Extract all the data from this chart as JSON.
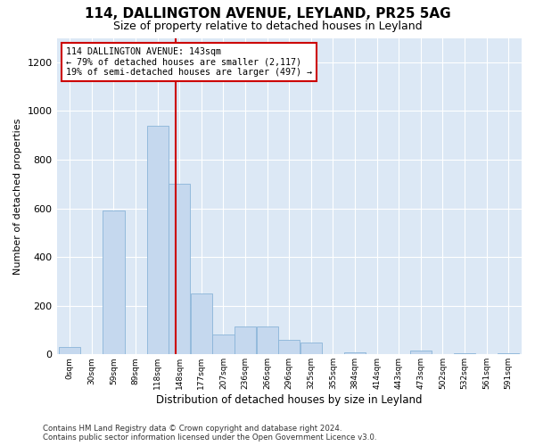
{
  "title": "114, DALLINGTON AVENUE, LEYLAND, PR25 5AG",
  "subtitle": "Size of property relative to detached houses in Leyland",
  "xlabel": "Distribution of detached houses by size in Leyland",
  "ylabel": "Number of detached properties",
  "bar_color": "#c5d8ee",
  "bar_edge_color": "#8ab4d8",
  "vline_color": "#cc0000",
  "vline_bin": 4,
  "annotation_text": "114 DALLINGTON AVENUE: 143sqm\n← 79% of detached houses are smaller (2,117)\n19% of semi-detached houses are larger (497) →",
  "annotation_box_color": "#ffffff",
  "annotation_box_edge": "#cc0000",
  "bin_labels": [
    "0sqm",
    "30sqm",
    "59sqm",
    "89sqm",
    "118sqm",
    "148sqm",
    "177sqm",
    "207sqm",
    "236sqm",
    "266sqm",
    "296sqm",
    "325sqm",
    "355sqm",
    "384sqm",
    "414sqm",
    "443sqm",
    "473sqm",
    "502sqm",
    "532sqm",
    "561sqm",
    "591sqm"
  ],
  "bar_heights": [
    30,
    0,
    590,
    0,
    940,
    700,
    250,
    80,
    115,
    115,
    60,
    50,
    0,
    10,
    0,
    0,
    15,
    0,
    5,
    0,
    5
  ],
  "ylim": [
    0,
    1300
  ],
  "yticks": [
    0,
    200,
    400,
    600,
    800,
    1000,
    1200
  ],
  "footer": "Contains HM Land Registry data © Crown copyright and database right 2024.\nContains public sector information licensed under the Open Government Licence v3.0.",
  "bg_color": "#dce8f5",
  "fig_bg_color": "#ffffff"
}
